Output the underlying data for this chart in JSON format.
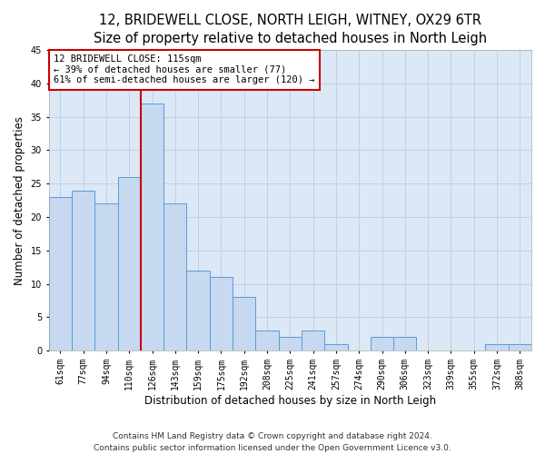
{
  "title": "12, BRIDEWELL CLOSE, NORTH LEIGH, WITNEY, OX29 6TR",
  "subtitle": "Size of property relative to detached houses in North Leigh",
  "xlabel": "Distribution of detached houses by size in North Leigh",
  "ylabel": "Number of detached properties",
  "categories": [
    "61sqm",
    "77sqm",
    "94sqm",
    "110sqm",
    "126sqm",
    "143sqm",
    "159sqm",
    "175sqm",
    "192sqm",
    "208sqm",
    "225sqm",
    "241sqm",
    "257sqm",
    "274sqm",
    "290sqm",
    "306sqm",
    "323sqm",
    "339sqm",
    "355sqm",
    "372sqm",
    "388sqm"
  ],
  "values": [
    23,
    24,
    22,
    26,
    37,
    22,
    12,
    11,
    8,
    3,
    2,
    3,
    1,
    0,
    2,
    2,
    0,
    0,
    0,
    1,
    1
  ],
  "bar_color": "#c6d9f0",
  "bar_edge_color": "#5b9bd5",
  "property_line_x": 3.5,
  "property_line_color": "#cc0000",
  "annotation_line1": "12 BRIDEWELL CLOSE: 115sqm",
  "annotation_line2": "← 39% of detached houses are smaller (77)",
  "annotation_line3": "61% of semi-detached houses are larger (120) →",
  "annotation_box_color": "#cc0000",
  "annotation_text_color": "#000000",
  "ylim": [
    0,
    45
  ],
  "yticks": [
    0,
    5,
    10,
    15,
    20,
    25,
    30,
    35,
    40,
    45
  ],
  "bg_color": "#ffffff",
  "plot_bg_color": "#dce8f5",
  "grid_color": "#c0d0e8",
  "footer1": "Contains HM Land Registry data © Crown copyright and database right 2024.",
  "footer2": "Contains public sector information licensed under the Open Government Licence v3.0.",
  "title_fontsize": 10.5,
  "subtitle_fontsize": 9.5,
  "ylabel_fontsize": 8.5,
  "xlabel_fontsize": 8.5,
  "tick_fontsize": 7,
  "annotation_fontsize": 7.5,
  "footer_fontsize": 6.5
}
